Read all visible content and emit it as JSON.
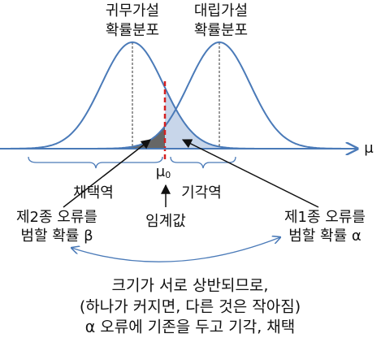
{
  "null_distribution": {
    "lines": [
      "귀무가설",
      "확률분포"
    ]
  },
  "alternative_distribution": {
    "lines": [
      "대립가설",
      "확률분포"
    ]
  },
  "axis_label": "μ",
  "critical_point": {
    "symbol": "μ",
    "subscript": "0"
  },
  "acceptance_region": "채택역",
  "rejection_region": "기각역",
  "critical_value": "임계값",
  "type2_error": {
    "lines": [
      "제2종 오류를",
      "범할 확률 β"
    ]
  },
  "type1_error": {
    "lines": [
      "제1종 오류를",
      "범할 확률 α"
    ]
  },
  "note": {
    "lines": [
      "크기가 서로 상반되므로,",
      "(하나가 커지면, 다른 것은 작아짐)",
      "α 오류에 기존을 두고 기각, 채택"
    ]
  }
}
